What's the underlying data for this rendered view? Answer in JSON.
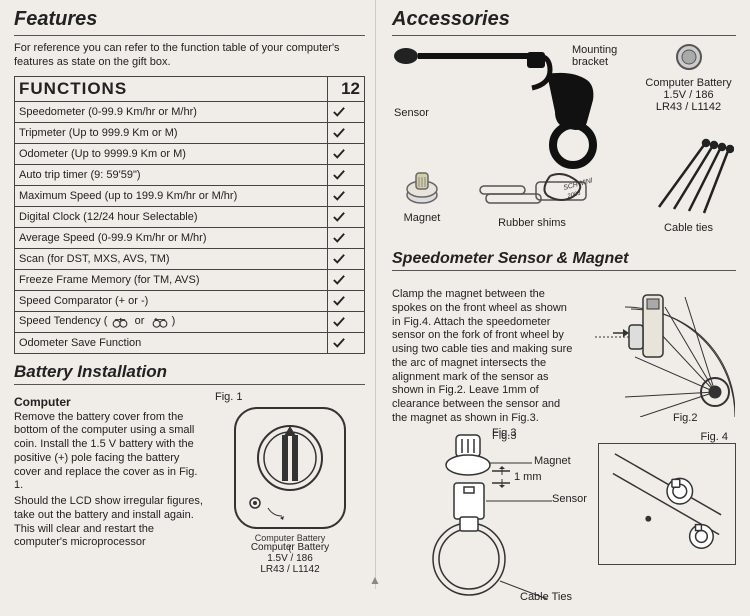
{
  "left": {
    "title": "Features",
    "intro": "For reference you can refer to the function table of your computer's features as state on the gift box.",
    "table_header": "FUNCTIONS",
    "table_count": "12",
    "functions": [
      "Speedometer (0-99.9 Km/hr or M/hr)",
      "Tripmeter (Up to 999.9 Km or M)",
      "Odometer (Up to 9999.9 Km or M)",
      "Auto trip timer (9: 59'59\")",
      "Maximum Speed (up to 199.9 Km/hr or M/hr)",
      "Digital Clock (12/24 hour Selectable)",
      "Average Speed (0-99.9 Km/hr or M/hr)",
      "Scan (for DST, MXS, AVS, TM)",
      "Freeze Frame Memory (for TM, AVS)",
      "Speed Comparator (+ or -)",
      "Speed Tendency (           or          )",
      "Odometer Save Function"
    ],
    "battery_title": "Battery Installation",
    "battery_subhead": "Computer",
    "battery_text1": "Remove the battery cover from the bottom of the computer using a small coin. Install the 1.5 V battery with the positive (+) pole facing the battery cover and replace the cover as in Fig. 1.",
    "battery_text2": "Should the LCD show irregular figures, take out the battery and install again. This will clear and restart the computer's microprocessor",
    "fig1_label": "Fig. 1",
    "fig1_caption": "Computer Battery\n1.5V / 186\nLR43 / L1142"
  },
  "right": {
    "title": "Accessories",
    "labels": {
      "sensor": "Sensor",
      "mounting": "Mounting\nbracket",
      "battery": "Computer Battery\n1.5V / 186\nLR43 / L1142",
      "magnet": "Magnet",
      "shims": "Rubber shims",
      "ties": "Cable ties"
    },
    "sensor_title": "Speedometer Sensor & Magnet",
    "sensor_text": "Clamp the magnet between the spokes on the front wheel as shown in Fig.4. Attach the speedometer sensor on the fork of front wheel by using two cable ties and making sure the arc of magnet intersects the alignment mark of the sensor as shown in Fig.2. Leave 1mm of clearance between the sensor and the magnet as shown in Fig.3.",
    "fig2_label": "Fig.2",
    "fig3_label": "Fig.3",
    "fig4_label": "Fig. 4",
    "callouts": {
      "magnet": "Magnet",
      "mm": "1 mm",
      "sensor": "Sensor",
      "ties": "Cable Ties"
    }
  },
  "colors": {
    "bg": "#f0ede8",
    "line": "#444444",
    "text": "#222222"
  }
}
